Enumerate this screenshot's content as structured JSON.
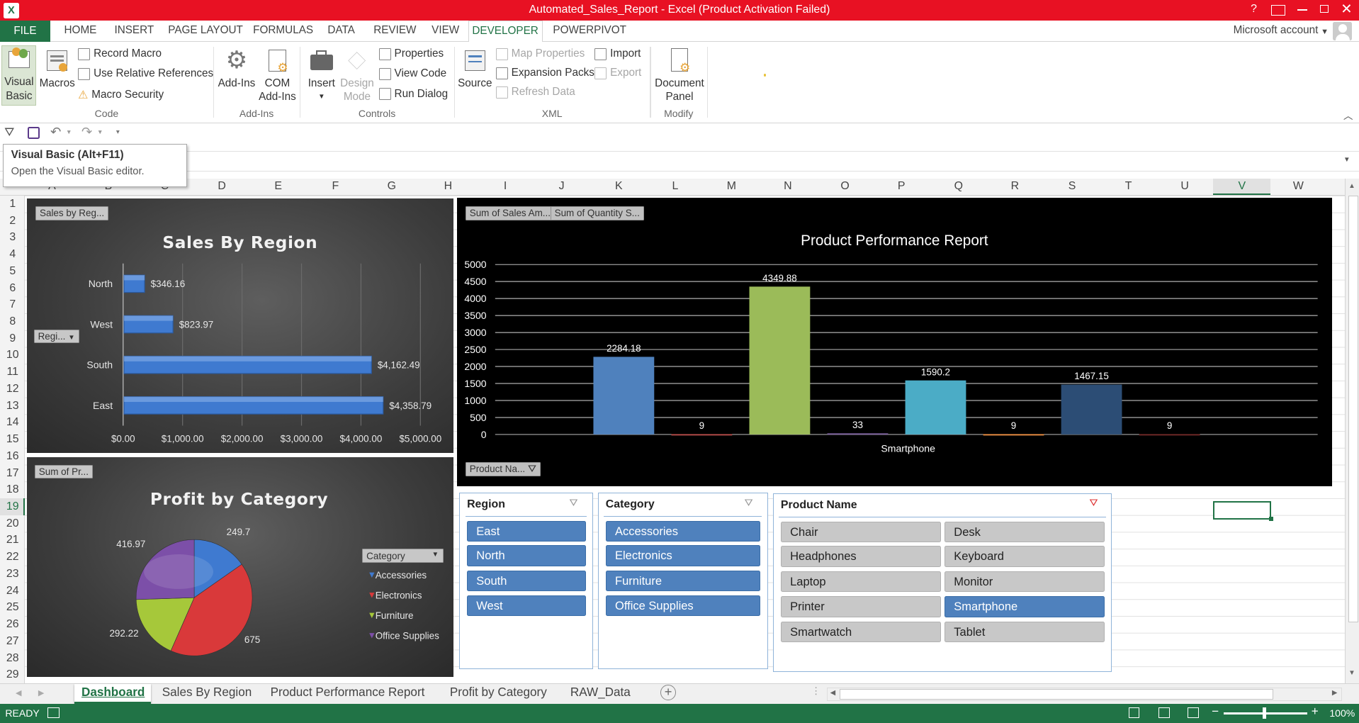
{
  "window": {
    "title": "Automated_Sales_Report -  Excel (Product Activation Failed)",
    "help": "?",
    "account": "Microsoft account"
  },
  "ribbon_tabs": [
    "FILE",
    "HOME",
    "INSERT",
    "PAGE LAYOUT",
    "FORMULAS",
    "DATA",
    "REVIEW",
    "VIEW",
    "DEVELOPER",
    "POWERPIVOT"
  ],
  "ribbon": {
    "code": {
      "visual_basic": "Visual Basic",
      "visual_basic_l1": "Visual",
      "visual_basic_l2": "Basic",
      "macros": "Macros",
      "record_macro": "Record Macro",
      "relative_refs": "Use Relative References",
      "macro_security": "Macro Security",
      "group": "Code"
    },
    "addins": {
      "addins": "Add-Ins",
      "com_l1": "COM",
      "com_l2": "Add-Ins",
      "group": "Add-Ins"
    },
    "controls": {
      "insert": "Insert",
      "design_l1": "Design",
      "design_l2": "Mode",
      "properties": "Properties",
      "view_code": "View Code",
      "run_dialog": "Run Dialog",
      "group": "Controls"
    },
    "xml": {
      "source": "Source",
      "map_properties": "Map Properties",
      "expansion_packs": "Expansion Packs",
      "refresh_data": "Refresh Data",
      "import": "Import",
      "export": "Export",
      "group": "XML"
    },
    "modify": {
      "doc_l1": "Document",
      "doc_l2": "Panel",
      "group": "Modify"
    }
  },
  "tooltip": {
    "title": "Visual Basic (Alt+F11)",
    "desc": "Open the Visual Basic editor."
  },
  "columns": [
    "A",
    "B",
    "C",
    "D",
    "E",
    "F",
    "G",
    "H",
    "I",
    "J",
    "K",
    "L",
    "M",
    "N",
    "O",
    "P",
    "Q",
    "R",
    "S",
    "T",
    "U",
    "V",
    "W"
  ],
  "rows": [
    "1",
    "2",
    "3",
    "4",
    "5",
    "6",
    "7",
    "8",
    "9",
    "10",
    "11",
    "12",
    "13",
    "14",
    "15",
    "16",
    "17",
    "18",
    "19",
    "20",
    "21",
    "22",
    "23",
    "24",
    "25",
    "26",
    "27",
    "28",
    "29"
  ],
  "selected_column": "V",
  "selected_row": "19",
  "chart_data": [
    {
      "type": "bar",
      "title": "Sales By Region",
      "field_buttons": [
        "Sales by Reg...",
        "Regi..."
      ],
      "categories": [
        "North",
        "West",
        "South",
        "East"
      ],
      "values": [
        346.16,
        823.97,
        4162.49,
        4358.79
      ],
      "data_labels": [
        "$346.16",
        "$823.97",
        "$4,162.49",
        "$4,358.79"
      ],
      "xlim": [
        0,
        5000
      ],
      "xticks": [
        "$0.00",
        "$1,000.00",
        "$2,000.00",
        "$3,000.00",
        "$4,000.00",
        "$5,000.00"
      ],
      "color": "#3f7ad0"
    },
    {
      "type": "bar",
      "title": "Product Performance Report",
      "field_buttons": [
        "Sum of Sales Am...",
        "Sum of Quantity S...",
        "Product Na..."
      ],
      "xlabel": "Smartphone",
      "ylim": [
        0,
        5000
      ],
      "yticks": [
        "5000",
        "4500",
        "4000",
        "3500",
        "3000",
        "2500",
        "2000",
        "1500",
        "1000",
        "500",
        "0"
      ],
      "values": [
        2284.18,
        9,
        4349.88,
        33,
        1590.2,
        9,
        1467.15,
        9
      ],
      "data_labels": [
        "2284.18",
        "9",
        "4349.88",
        "33",
        "1590.2",
        "9",
        "1467.15",
        "9"
      ],
      "colors": [
        "#4f81bd",
        "#c0504d",
        "#9bbb59",
        "#8064a2",
        "#4bacc6",
        "#f79646",
        "#2c4d75",
        "#772c2a"
      ]
    },
    {
      "type": "pie",
      "title": "Profit by Category",
      "field_buttons": [
        "Sum of Pr...",
        "Category"
      ],
      "categories": [
        "Accessories",
        "Electronics",
        "Furniture",
        "Office Supplies"
      ],
      "values": [
        249.7,
        675,
        292.22,
        416.97
      ],
      "data_labels": [
        "249.7",
        "675",
        "292.22",
        "416.97"
      ],
      "colors": [
        "#3f7ad0",
        "#d9393a",
        "#a6c83a",
        "#7c4fa8"
      ]
    }
  ],
  "slicers": {
    "region": {
      "header": "Region",
      "items": [
        "East",
        "North",
        "South",
        "West"
      ]
    },
    "category": {
      "header": "Category",
      "items": [
        "Accessories",
        "Electronics",
        "Furniture",
        "Office Supplies"
      ]
    },
    "product": {
      "header": "Product Name",
      "items": [
        "Chair",
        "Desk",
        "Headphones",
        "Keyboard",
        "Laptop",
        "Monitor",
        "Printer",
        "Smartphone",
        "Smartwatch",
        "Tablet"
      ],
      "selected": "Smartphone"
    }
  },
  "sheet_tabs": [
    "Dashboard",
    "Sales By Region",
    "Product Performance Report",
    "Profit by Category",
    "RAW_Data"
  ],
  "status": {
    "ready": "READY",
    "zoom": "100%"
  }
}
